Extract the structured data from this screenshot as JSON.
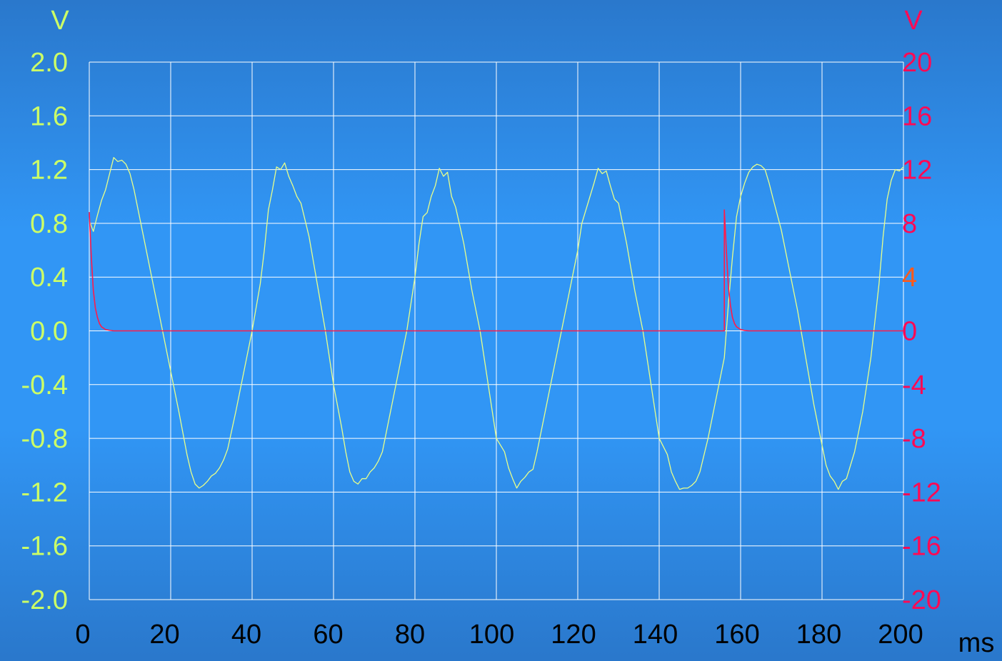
{
  "chart_data": {
    "type": "line",
    "x_unit_label": "ms",
    "left_axis": {
      "unit_label": "V",
      "ylim": [
        -2.0,
        2.0
      ],
      "ticks": [
        "2.0",
        "1.6",
        "1.2",
        "0.8",
        "0.4",
        "0.0",
        "-0.4",
        "-0.8",
        "-1.2",
        "-1.6",
        "-2.0"
      ],
      "color": "#ccff66"
    },
    "right_axis": {
      "unit_label": "V",
      "ylim": [
        -20,
        20
      ],
      "ticks": [
        "20",
        "16",
        "12",
        "8",
        "4",
        "0",
        "-4",
        "-8",
        "-12",
        "-16",
        "-20"
      ],
      "color": "#ff0a55",
      "highlight_tick": "4",
      "highlight_color": "#ff5a1a"
    },
    "x_axis": {
      "xlim": [
        0,
        200
      ],
      "ticks": [
        "0",
        "20",
        "40",
        "60",
        "80",
        "100",
        "120",
        "140",
        "160",
        "180",
        "200"
      ],
      "color": "#000000"
    },
    "grid": true,
    "grid_color": "#ffffff",
    "series": [
      {
        "axis": "left",
        "color": "#e8ff8a",
        "points": [
          [
            0,
            0.82
          ],
          [
            1,
            0.74
          ],
          [
            2,
            0.86
          ],
          [
            3,
            0.97
          ],
          [
            4,
            1.05
          ],
          [
            5,
            1.17
          ],
          [
            6,
            1.29
          ],
          [
            7,
            1.26
          ],
          [
            8,
            1.27
          ],
          [
            9,
            1.24
          ],
          [
            10,
            1.17
          ],
          [
            11,
            1.05
          ],
          [
            12,
            0.9
          ],
          [
            14,
            0.6
          ],
          [
            16,
            0.3
          ],
          [
            18,
            0.0
          ],
          [
            20,
            -0.3
          ],
          [
            22,
            -0.6
          ],
          [
            24,
            -0.92
          ],
          [
            25,
            -1.05
          ],
          [
            26,
            -1.14
          ],
          [
            27,
            -1.17
          ],
          [
            28,
            -1.15
          ],
          [
            29,
            -1.12
          ],
          [
            30,
            -1.08
          ],
          [
            31,
            -1.06
          ],
          [
            32,
            -1.02
          ],
          [
            33,
            -0.96
          ],
          [
            34,
            -0.88
          ],
          [
            36,
            -0.6
          ],
          [
            38,
            -0.3
          ],
          [
            40,
            0.0
          ],
          [
            42,
            0.35
          ],
          [
            43,
            0.6
          ],
          [
            44,
            0.9
          ],
          [
            45,
            1.05
          ],
          [
            46,
            1.22
          ],
          [
            47,
            1.2
          ],
          [
            48,
            1.25
          ],
          [
            49,
            1.15
          ],
          [
            50,
            1.08
          ],
          [
            51,
            1.0
          ],
          [
            52,
            0.95
          ],
          [
            54,
            0.7
          ],
          [
            56,
            0.35
          ],
          [
            58,
            0.0
          ],
          [
            60,
            -0.4
          ],
          [
            62,
            -0.72
          ],
          [
            63,
            -0.9
          ],
          [
            64,
            -1.05
          ],
          [
            65,
            -1.12
          ],
          [
            66,
            -1.14
          ],
          [
            67,
            -1.1
          ],
          [
            68,
            -1.1
          ],
          [
            69,
            -1.05
          ],
          [
            70,
            -1.02
          ],
          [
            71,
            -0.97
          ],
          [
            72,
            -0.9
          ],
          [
            74,
            -0.6
          ],
          [
            76,
            -0.3
          ],
          [
            78,
            0.0
          ],
          [
            80,
            0.4
          ],
          [
            81,
            0.65
          ],
          [
            82,
            0.85
          ],
          [
            83,
            0.88
          ],
          [
            84,
            1.0
          ],
          [
            85,
            1.08
          ],
          [
            86,
            1.21
          ],
          [
            87,
            1.15
          ],
          [
            88,
            1.18
          ],
          [
            89,
            1.0
          ],
          [
            90,
            0.92
          ],
          [
            92,
            0.65
          ],
          [
            94,
            0.3
          ],
          [
            96,
            0.0
          ],
          [
            98,
            -0.4
          ],
          [
            100,
            -0.8
          ],
          [
            102,
            -0.9
          ],
          [
            103,
            -1.02
          ],
          [
            104,
            -1.1
          ],
          [
            105,
            -1.17
          ],
          [
            106,
            -1.12
          ],
          [
            107,
            -1.09
          ],
          [
            108,
            -1.05
          ],
          [
            109,
            -1.03
          ],
          [
            110,
            -0.9
          ],
          [
            112,
            -0.6
          ],
          [
            114,
            -0.3
          ],
          [
            116,
            0.0
          ],
          [
            118,
            0.3
          ],
          [
            120,
            0.6
          ],
          [
            121,
            0.8
          ],
          [
            122,
            0.9
          ],
          [
            123,
            1.0
          ],
          [
            124,
            1.1
          ],
          [
            125,
            1.21
          ],
          [
            126,
            1.17
          ],
          [
            127,
            1.19
          ],
          [
            128,
            1.08
          ],
          [
            129,
            0.98
          ],
          [
            130,
            0.95
          ],
          [
            132,
            0.65
          ],
          [
            134,
            0.3
          ],
          [
            136,
            0.0
          ],
          [
            138,
            -0.4
          ],
          [
            140,
            -0.8
          ],
          [
            142,
            -0.92
          ],
          [
            143,
            -1.05
          ],
          [
            144,
            -1.12
          ],
          [
            145,
            -1.18
          ],
          [
            146,
            -1.17
          ],
          [
            147,
            -1.17
          ],
          [
            148,
            -1.15
          ],
          [
            149,
            -1.12
          ],
          [
            150,
            -1.05
          ],
          [
            152,
            -0.8
          ],
          [
            154,
            -0.5
          ],
          [
            156,
            -0.2
          ],
          [
            157,
            0.2
          ],
          [
            158,
            0.55
          ],
          [
            159,
            0.85
          ],
          [
            160,
            1.0
          ],
          [
            161,
            1.1
          ],
          [
            162,
            1.18
          ],
          [
            163,
            1.22
          ],
          [
            164,
            1.24
          ],
          [
            165,
            1.23
          ],
          [
            166,
            1.2
          ],
          [
            167,
            1.1
          ],
          [
            168,
            0.98
          ],
          [
            170,
            0.75
          ],
          [
            172,
            0.45
          ],
          [
            174,
            0.15
          ],
          [
            176,
            -0.2
          ],
          [
            178,
            -0.55
          ],
          [
            180,
            -0.85
          ],
          [
            181,
            -1.0
          ],
          [
            182,
            -1.08
          ],
          [
            183,
            -1.12
          ],
          [
            184,
            -1.18
          ],
          [
            185,
            -1.12
          ],
          [
            186,
            -1.1
          ],
          [
            187,
            -1.0
          ],
          [
            188,
            -0.9
          ],
          [
            190,
            -0.6
          ],
          [
            192,
            -0.2
          ],
          [
            194,
            0.35
          ],
          [
            195,
            0.7
          ],
          [
            196,
            0.98
          ],
          [
            197,
            1.12
          ],
          [
            198,
            1.2
          ],
          [
            199,
            1.19
          ],
          [
            200,
            1.22
          ]
        ]
      },
      {
        "axis": "right",
        "color": "#ff1a4a",
        "points": [
          [
            0,
            8.8
          ],
          [
            0.5,
            5.5
          ],
          [
            1,
            3.0
          ],
          [
            1.5,
            1.7
          ],
          [
            2,
            1.0
          ],
          [
            2.5,
            0.55
          ],
          [
            3,
            0.3
          ],
          [
            4,
            0.1
          ],
          [
            5,
            0.04
          ],
          [
            6,
            0.0
          ],
          [
            156,
            0.0
          ],
          [
            156,
            9.0
          ],
          [
            156.5,
            6.0
          ],
          [
            157,
            3.3
          ],
          [
            157.5,
            1.9
          ],
          [
            158,
            1.0
          ],
          [
            158.5,
            0.55
          ],
          [
            159,
            0.3
          ],
          [
            160,
            0.1
          ],
          [
            161,
            0.03
          ],
          [
            162,
            0.0
          ],
          [
            200,
            0.0
          ]
        ]
      }
    ]
  }
}
